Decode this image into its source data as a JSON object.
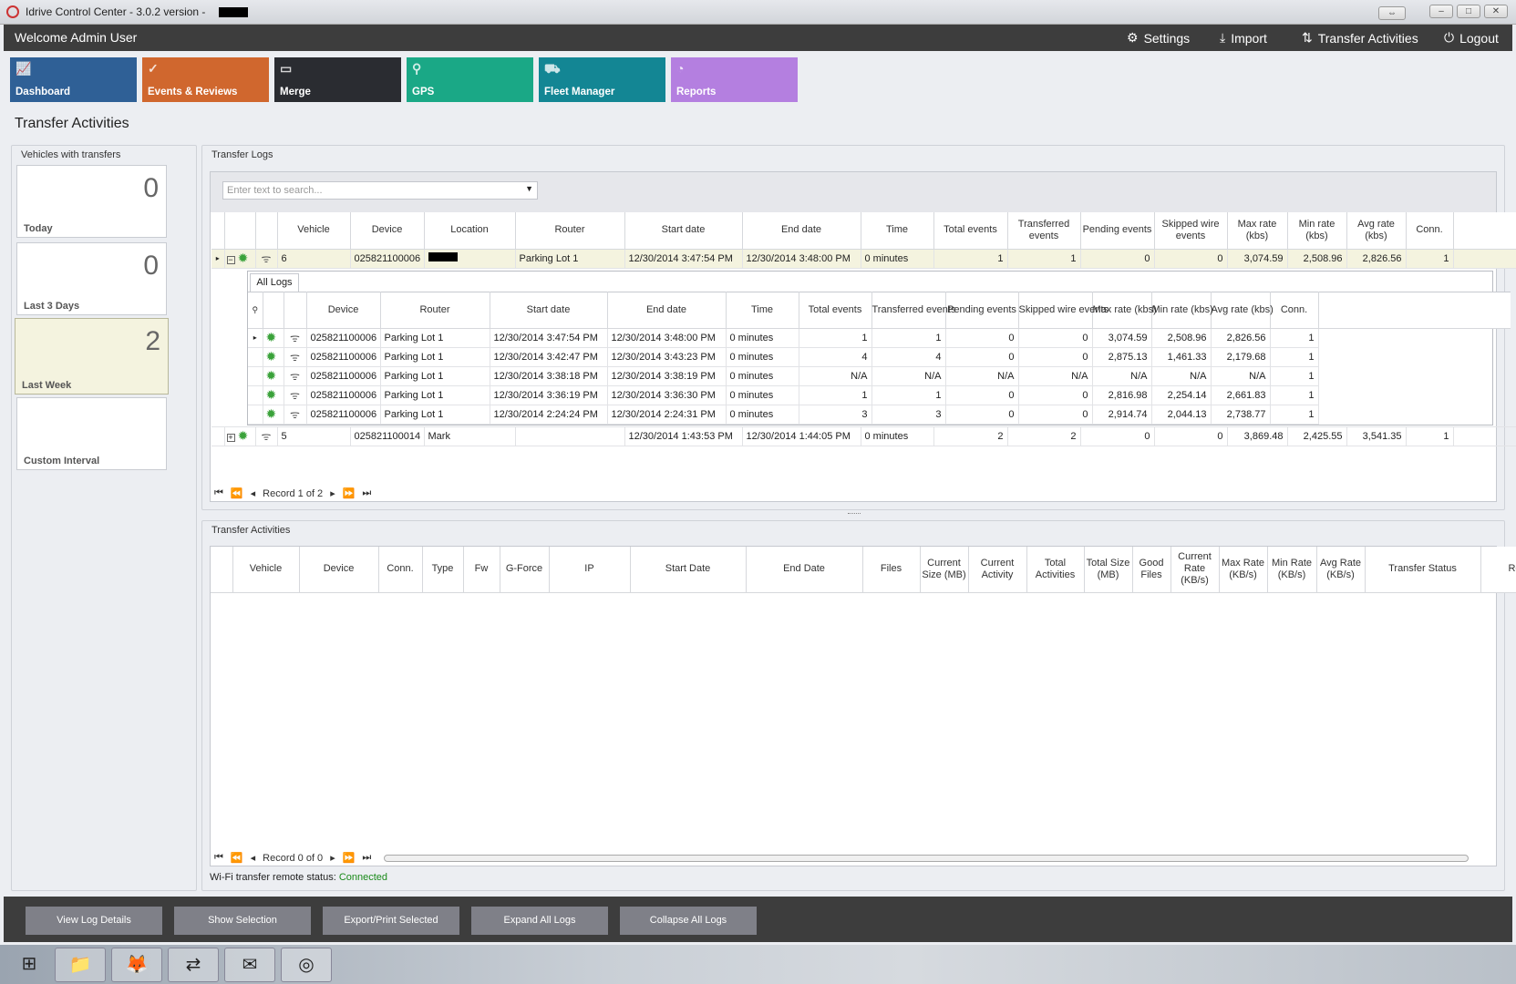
{
  "window": {
    "title": "Idrive Control Center - 3.0.2 version -",
    "minimize": "–",
    "maximize": "□",
    "close": "✕",
    "resize": "⇔"
  },
  "header": {
    "welcome": "Welcome Admin User",
    "links": [
      {
        "label": "Settings",
        "icon": "gears-icon"
      },
      {
        "label": "Import",
        "icon": "download-icon"
      },
      {
        "label": "Transfer Activities",
        "icon": "transfer-arrows-icon"
      },
      {
        "label": "Logout",
        "icon": "power-icon"
      }
    ]
  },
  "tiles": [
    {
      "label": "Dashboard",
      "color": "#2f6096"
    },
    {
      "label": "Events & Reviews",
      "color": "#d0672e"
    },
    {
      "label": "Merge",
      "color": "#2a2c31"
    },
    {
      "label": "GPS",
      "color": "#1aa886"
    },
    {
      "label": "Fleet Manager",
      "color": "#138694"
    },
    {
      "label": "Reports",
      "color": "#b47fe0"
    }
  ],
  "page_title": "Transfer Activities",
  "vehicles_panel": {
    "title": "Vehicles with transfers",
    "cards": [
      {
        "count": "0",
        "label": "Today"
      },
      {
        "count": "0",
        "label": "Last 3 Days"
      },
      {
        "count": "2",
        "label": "Last Week",
        "selected": true
      },
      {
        "count": "",
        "label": "Custom Interval"
      }
    ]
  },
  "transfer_logs": {
    "title": "Transfer Logs",
    "search_placeholder": "Enter text to search...",
    "columns": [
      "Vehicle",
      "Device",
      "Location",
      "Router",
      "Start date",
      "End date",
      "Time",
      "Total events",
      "Transferred events",
      "Pending events",
      "Skipped wire events",
      "Max rate (kbs)",
      "Min rate (kbs)",
      "Avg rate (kbs)",
      "Conn."
    ],
    "rows": [
      {
        "expanded": true,
        "cells": [
          "6",
          "025821100006",
          "",
          "Parking Lot 1",
          "12/30/2014 3:47:54 PM",
          "12/30/2014 3:48:00 PM",
          "0 minutes",
          "1",
          "1",
          "0",
          "0",
          "3,074.59",
          "2,508.96",
          "2,826.56",
          "1"
        ],
        "detail": {
          "tab": "All Logs",
          "columns": [
            "Device",
            "Router",
            "Start date",
            "End date",
            "Time",
            "Total events",
            "Transferred events",
            "Pending events",
            "Skipped wire events",
            "Max rate (kbs)",
            "Min rate (kbs)",
            "Avg rate (kbs)",
            "Conn."
          ],
          "rows": [
            [
              "025821100006",
              "Parking Lot 1",
              "12/30/2014 3:47:54 PM",
              "12/30/2014 3:48:00 PM",
              "0 minutes",
              "1",
              "1",
              "0",
              "0",
              "3,074.59",
              "2,508.96",
              "2,826.56",
              "1"
            ],
            [
              "025821100006",
              "Parking Lot 1",
              "12/30/2014 3:42:47 PM",
              "12/30/2014 3:43:23 PM",
              "0 minutes",
              "4",
              "4",
              "0",
              "0",
              "2,875.13",
              "1,461.33",
              "2,179.68",
              "1"
            ],
            [
              "025821100006",
              "Parking Lot 1",
              "12/30/2014 3:38:18 PM",
              "12/30/2014 3:38:19 PM",
              "0 minutes",
              "N/A",
              "N/A",
              "N/A",
              "N/A",
              "N/A",
              "N/A",
              "N/A",
              "1"
            ],
            [
              "025821100006",
              "Parking Lot 1",
              "12/30/2014 3:36:19 PM",
              "12/30/2014 3:36:30 PM",
              "0 minutes",
              "1",
              "1",
              "0",
              "0",
              "2,816.98",
              "2,254.14",
              "2,661.83",
              "1"
            ],
            [
              "025821100006",
              "Parking Lot 1",
              "12/30/2014 2:24:24 PM",
              "12/30/2014 2:24:31 PM",
              "0 minutes",
              "3",
              "3",
              "0",
              "0",
              "2,914.74",
              "2,044.13",
              "2,738.77",
              "1"
            ]
          ]
        }
      },
      {
        "expanded": false,
        "cells": [
          "5",
          "025821100014",
          "Mark",
          "",
          "12/30/2014 1:43:53 PM",
          "12/30/2014 1:44:05 PM",
          "0 minutes",
          "2",
          "2",
          "0",
          "0",
          "3,869.48",
          "2,425.55",
          "3,541.35",
          "1"
        ]
      }
    ],
    "pager": "Record 1 of 2"
  },
  "transfer_activities": {
    "title": "Transfer Activities",
    "columns": [
      "Vehicle",
      "Device",
      "Conn.",
      "Type",
      "Fw",
      "G-Force",
      "IP",
      "Start Date",
      "End Date",
      "Files",
      "Current Size (MB)",
      "Current Activity",
      "Total Activities",
      "Total Size (MB)",
      "Good Files",
      "Current Rate (KB/s)",
      "Max Rate (KB/s)",
      "Min Rate (KB/s)",
      "Avg Rate (KB/s)",
      "Transfer Status",
      "Router"
    ],
    "pager": "Record 0 of 0"
  },
  "status": {
    "label": "Wi-Fi transfer remote status:",
    "value": "Connected",
    "color": "#1a8a1a"
  },
  "buttons": [
    "View Log Details",
    "Show Selection",
    "Export/Print Selected",
    "Expand All Logs",
    "Collapse All Logs"
  ],
  "taskbar": [
    {
      "icon": "windows-start-icon"
    },
    {
      "icon": "file-explorer-icon"
    },
    {
      "icon": "firefox-icon"
    },
    {
      "icon": "teamviewer-icon"
    },
    {
      "icon": "outlook-icon"
    },
    {
      "icon": "idrive-icon"
    }
  ]
}
